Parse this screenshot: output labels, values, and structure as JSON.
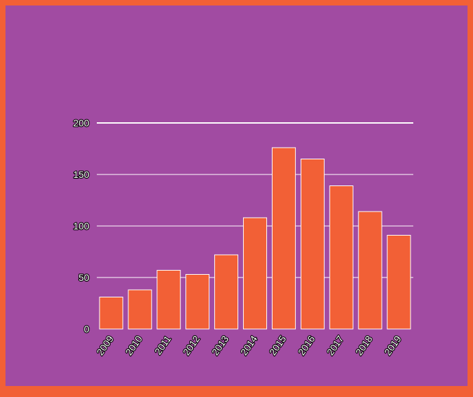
{
  "chart_data": {
    "type": "bar",
    "categories": [
      "2009",
      "2010",
      "2011",
      "2012",
      "2013",
      "2014",
      "2015",
      "2016",
      "2017",
      "2018",
      "2019"
    ],
    "values": [
      31,
      38,
      57,
      53,
      72,
      108,
      176,
      165,
      139,
      114,
      91
    ],
    "title": "",
    "xlabel": "",
    "ylabel": "",
    "ylim": [
      0,
      200
    ],
    "yticks": [
      "0",
      "50",
      "100",
      "150",
      "200"
    ],
    "grid": true,
    "legend": "none",
    "colors": {
      "background": "#a14ba2",
      "border": "#f26036",
      "bar": "#f26036",
      "bar_outline": "#ffffff",
      "gridline": "#ffffff"
    }
  }
}
